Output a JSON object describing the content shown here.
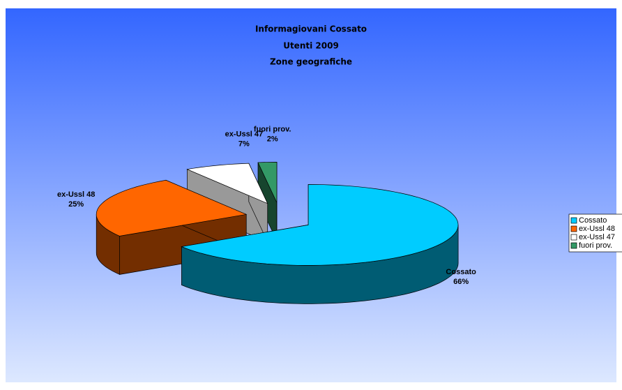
{
  "chart_data": {
    "type": "pie3d",
    "title": [
      "Informagiovani Cossato",
      "Utenti  2009",
      "Zone geografiche"
    ],
    "categories": [
      "Cossato",
      "ex-Ussl 48",
      "ex-Ussl 47",
      "fuori prov."
    ],
    "values": [
      66,
      25,
      7,
      2
    ],
    "value_labels": [
      "66%",
      "25%",
      "7%",
      "2%"
    ],
    "colors": [
      "#00ccff",
      "#ff6600",
      "#ffffff",
      "#339966"
    ],
    "legend": "right"
  }
}
